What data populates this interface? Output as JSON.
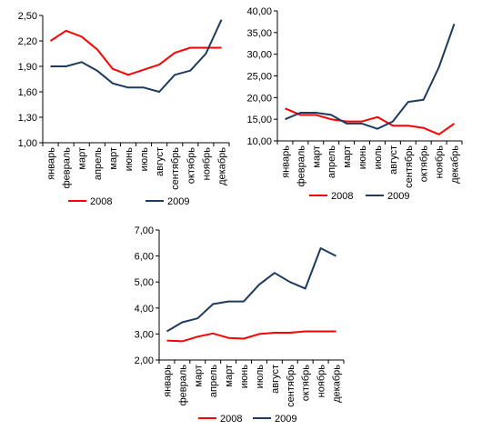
{
  "colors": {
    "series_2008": "#ff0000",
    "series_2009": "#1f3a5f",
    "axis": "#000000"
  },
  "chart_data": [
    {
      "type": "line",
      "categories": [
        "январь",
        "февраль",
        "март",
        "апрель",
        "март",
        "июнь",
        "июль",
        "август",
        "сентябрь",
        "октябрь",
        "ноябрь",
        "декабрь"
      ],
      "series": [
        {
          "name": "2008",
          "values": [
            2.2,
            2.32,
            2.25,
            2.1,
            1.87,
            1.8,
            1.86,
            1.92,
            2.06,
            2.12,
            2.12,
            2.12
          ]
        },
        {
          "name": "2009",
          "values": [
            1.9,
            1.9,
            1.95,
            1.85,
            1.7,
            1.65,
            1.65,
            1.6,
            1.8,
            1.85,
            2.05,
            2.45
          ]
        }
      ],
      "yticks": [
        "1,00",
        "1,30",
        "1,60",
        "1,90",
        "2,20",
        "2,50"
      ],
      "ylim": [
        1.0,
        2.5
      ],
      "grid": false,
      "legend": "bottom",
      "xlabel": "",
      "ylabel": "",
      "title": ""
    },
    {
      "type": "line",
      "categories": [
        "январь",
        "февраль",
        "март",
        "апрель",
        "март",
        "июнь",
        "июль",
        "август",
        "сентябрь",
        "октябрь",
        "ноябрь",
        "декабрь"
      ],
      "series": [
        {
          "name": "2008",
          "values": [
            17.5,
            16.0,
            16.0,
            15.0,
            14.5,
            14.5,
            15.5,
            13.5,
            13.5,
            13.0,
            11.5,
            14.0
          ]
        },
        {
          "name": "2009",
          "values": [
            15.0,
            16.5,
            16.5,
            16.0,
            14.0,
            14.0,
            12.8,
            14.5,
            19.0,
            19.5,
            27.0,
            37.0
          ]
        }
      ],
      "yticks": [
        "10,00",
        "15,00",
        "20,00",
        "25,00",
        "30,00",
        "35,00",
        "40,00"
      ],
      "ylim": [
        10,
        40
      ],
      "grid": false,
      "legend": "bottom",
      "xlabel": "",
      "ylabel": "",
      "title": ""
    },
    {
      "type": "line",
      "categories": [
        "январь",
        "февраль",
        "март",
        "апрель",
        "март",
        "июнь",
        "июль",
        "август",
        "сентябрь",
        "октябрь",
        "ноябрь",
        "декабрь"
      ],
      "series": [
        {
          "name": "2008",
          "values": [
            2.75,
            2.72,
            2.9,
            3.02,
            2.85,
            2.82,
            3.0,
            3.05,
            3.05,
            3.1,
            3.1,
            3.1
          ]
        },
        {
          "name": "2009",
          "values": [
            3.1,
            3.45,
            3.6,
            4.15,
            4.25,
            4.25,
            4.9,
            5.35,
            5.0,
            4.75,
            6.3,
            6.0
          ]
        }
      ],
      "yticks": [
        "2,00",
        "3,00",
        "4,00",
        "5,00",
        "6,00",
        "7,00"
      ],
      "ylim": [
        2,
        7
      ],
      "grid": false,
      "legend": "bottom",
      "xlabel": "",
      "ylabel": "",
      "title": ""
    }
  ]
}
